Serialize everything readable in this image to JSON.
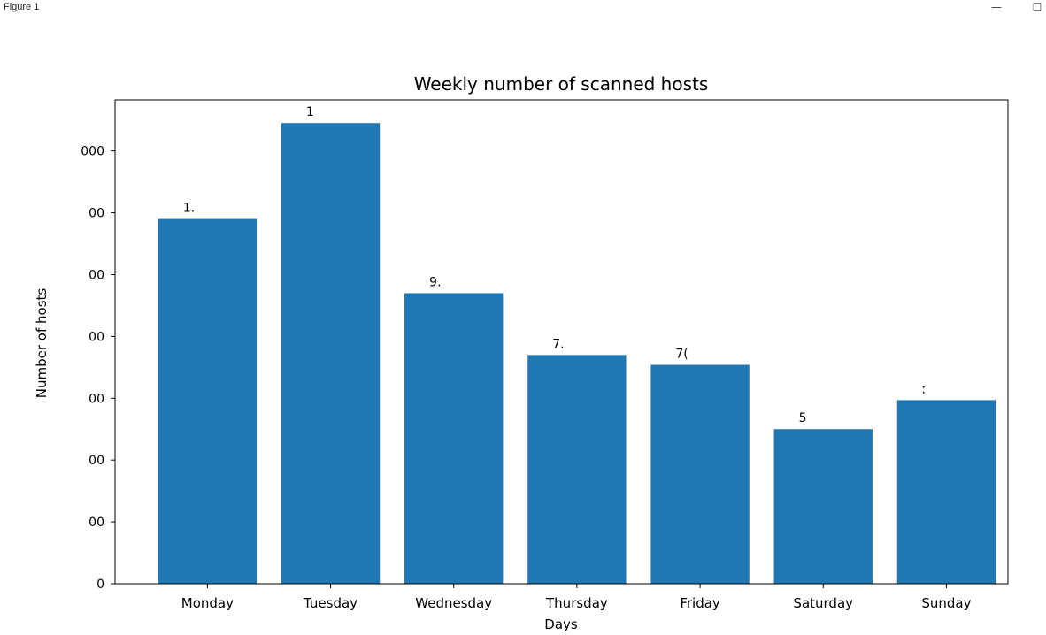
{
  "window": {
    "title": "Figure 1",
    "minimize_glyph": "—",
    "maximize_glyph": "☐"
  },
  "chart_data": {
    "type": "bar",
    "title": "Weekly number of scanned hosts",
    "xlabel": "Days",
    "ylabel": "Number of hosts",
    "categories": [
      "Monday",
      "Tuesday",
      "Wednesday",
      "Thursday",
      "Friday",
      "Saturday",
      "Sunday"
    ],
    "values": [
      11800,
      14900,
      9400,
      7400,
      7080,
      5000,
      5940
    ],
    "data_labels": [
      "1.",
      "1",
      "9․",
      "7.",
      "7(",
      "5",
      "ː"
    ],
    "ylim": [
      0,
      15650
    ],
    "yticks": [
      0,
      2000,
      4000,
      6000,
      8000,
      10000,
      12000,
      14000
    ],
    "ytick_labels": [
      "0",
      "00",
      "00",
      "00",
      "00",
      "00",
      "00",
      "000"
    ],
    "grid": false,
    "colors": {
      "bar": "#1f77b4",
      "axes": "#000000",
      "text": "#000000"
    }
  }
}
